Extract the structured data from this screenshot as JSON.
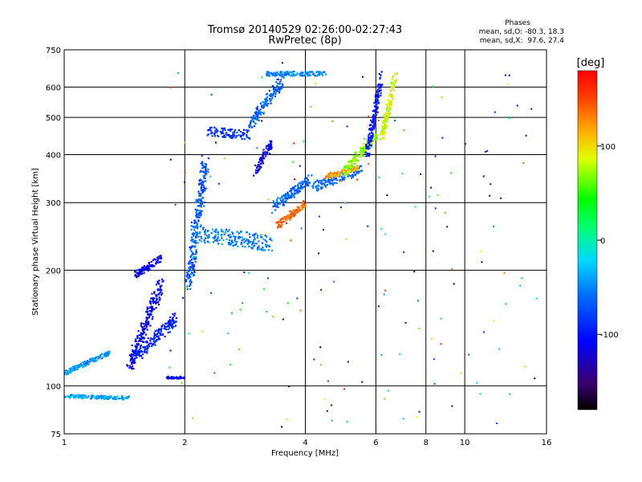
{
  "chart_data": {
    "type": "scatter",
    "title": "Tromsø 20140529 02:26:00-02:27:43",
    "subtitle": "RwPretec (8p)",
    "xlabel": "Frequency [MHz]",
    "ylabel": "Stationary phase Virtual Height [km]",
    "x_scale": "log",
    "y_scale": "log",
    "xlim": [
      1,
      16
    ],
    "ylim": [
      75,
      750
    ],
    "x_ticks": [
      1,
      2,
      4,
      6,
      8,
      10,
      16
    ],
    "x_tick_labels": [
      "1",
      "2",
      "4",
      "6",
      "8",
      "10",
      "16"
    ],
    "y_ticks": [
      75,
      100,
      200,
      300,
      400,
      500,
      600,
      750
    ],
    "y_tick_labels": [
      "75",
      "100",
      "200",
      "300",
      "400",
      "500",
      "600",
      "750"
    ],
    "grid": true,
    "phase_info": {
      "title": "Phases",
      "line_o": "mean, sd,O: -80.3, 18.3",
      "line_x": "mean, sd,X:  97.6, 27.4"
    },
    "colorbar": {
      "label": "[deg]",
      "range": [
        -180,
        180
      ],
      "ticks": [
        100,
        0,
        -100
      ],
      "tick_labels": [
        "100",
        "0",
        "-100"
      ],
      "colormap": "rainbow"
    },
    "series": [
      {
        "segments": [
          {
            "f": [
              1.0,
              1.45
            ],
            "h": [
              94,
              93
            ],
            "phase": -40,
            "spread": 0.015
          },
          {
            "f": [
              1.0,
              1.3
            ],
            "h": [
              108,
              122
            ],
            "phase": -45,
            "spread": 0.02
          },
          {
            "f": [
              1.45,
              1.75
            ],
            "h": [
              112,
              185
            ],
            "phase": -110,
            "spread": 0.06
          },
          {
            "f": [
              1.5,
              1.9
            ],
            "h": [
              118,
              150
            ],
            "phase": -95,
            "spread": 0.05
          },
          {
            "f": [
              1.5,
              1.75
            ],
            "h": [
              195,
              215
            ],
            "phase": -110,
            "spread": 0.03
          },
          {
            "f": [
              1.8,
              2.0
            ],
            "h": [
              105,
              105
            ],
            "phase": -110,
            "spread": 0.01
          }
        ]
      },
      {
        "segments": [
          {
            "f": [
              2.05,
              2.25
            ],
            "h": [
              185,
              380
            ],
            "phase": -70,
            "spread": 0.07
          },
          {
            "f": [
              2.1,
              3.3
            ],
            "h": [
              250,
              235
            ],
            "phase": -55,
            "spread": 0.07
          },
          {
            "f": [
              2.3,
              2.9
            ],
            "h": [
              460,
              450
            ],
            "phase": -85,
            "spread": 0.04
          },
          {
            "f": [
              2.9,
              3.5
            ],
            "h": [
              480,
              620
            ],
            "phase": -65,
            "spread": 0.05
          },
          {
            "f": [
              3.2,
              4.5
            ],
            "h": [
              650,
              650
            ],
            "phase": -50,
            "spread": 0.02
          },
          {
            "f": [
              3.0,
              3.3
            ],
            "h": [
              360,
              430
            ],
            "phase": -110,
            "spread": 0.04
          }
        ]
      },
      {
        "segments": [
          {
            "f": [
              3.3,
              4.1
            ],
            "h": [
              290,
              345
            ],
            "phase": -65,
            "spread": 0.04
          },
          {
            "f": [
              3.4,
              4.0
            ],
            "h": [
              260,
              300
            ],
            "phase": 140,
            "spread": 0.03
          },
          {
            "f": [
              4.2,
              5.5
            ],
            "h": [
              330,
              365
            ],
            "phase": -60,
            "spread": 0.04
          },
          {
            "f": [
              4.5,
              5.4
            ],
            "h": [
              350,
              370
            ],
            "phase": 120,
            "spread": 0.02
          },
          {
            "f": [
              5.0,
              6.0
            ],
            "h": [
              360,
              450
            ],
            "phase": 70,
            "spread": 0.04
          },
          {
            "f": [
              5.7,
              6.2
            ],
            "h": [
              400,
              640
            ],
            "phase": -100,
            "spread": 0.04
          },
          {
            "f": [
              6.2,
              6.7
            ],
            "h": [
              440,
              640
            ],
            "phase": 85,
            "spread": 0.04
          }
        ]
      }
    ]
  }
}
